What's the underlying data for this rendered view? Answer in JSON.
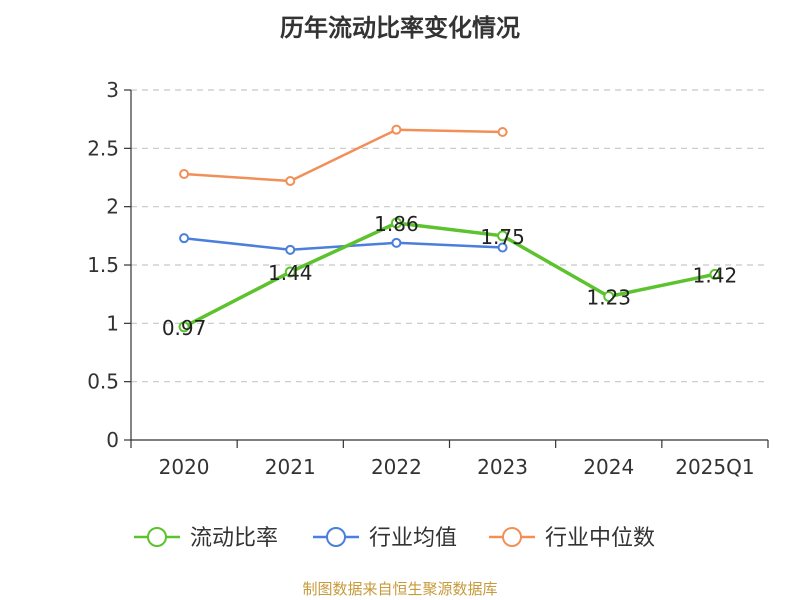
{
  "title": "历年流动比率变化情况",
  "source_note": "制图数据来自恒生聚源数据库",
  "colors": {
    "流动比率": "#5cc22e",
    "行业均值": "#4a7fdb",
    "行业中位数": "#f28f58",
    "grid": "#c8c8c8",
    "axis": "#333333"
  },
  "chart_data": {
    "type": "line",
    "title": "历年流动比率变化情况",
    "categories": [
      "2020",
      "2021",
      "2022",
      "2023",
      "2024",
      "2025Q1"
    ],
    "ylim": [
      0,
      3
    ],
    "yticks": [
      "0",
      "0.5",
      "1",
      "1.5",
      "2",
      "2.5",
      "3"
    ],
    "grid": true,
    "legend_position": "bottom",
    "series": [
      {
        "name": "流动比率",
        "values": [
          0.97,
          1.44,
          1.86,
          1.75,
          1.23,
          1.42
        ],
        "labels": [
          "0.97",
          "1.44",
          "1.86",
          "1.75",
          "1.23",
          "1.42"
        ]
      },
      {
        "name": "行业均值",
        "values": [
          1.73,
          1.63,
          1.69,
          1.65,
          null,
          null
        ]
      },
      {
        "name": "行业中位数",
        "values": [
          2.28,
          2.22,
          2.66,
          2.64,
          null,
          null
        ]
      }
    ]
  }
}
